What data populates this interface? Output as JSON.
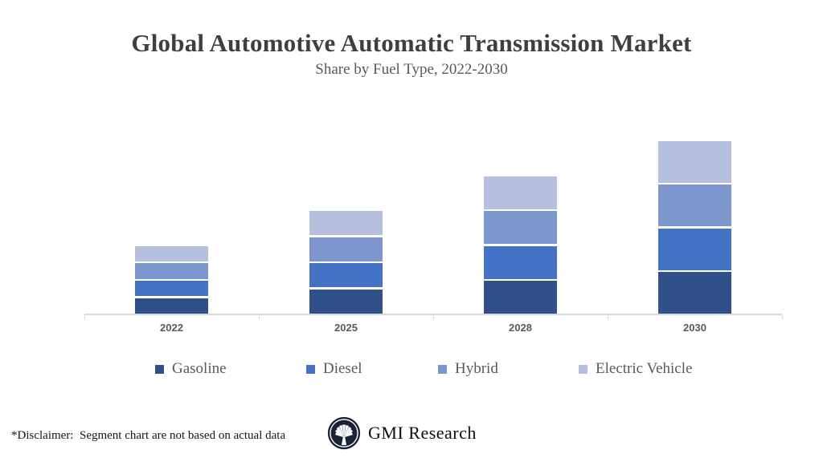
{
  "header": {
    "title": "Global Automotive Automatic Transmission Market",
    "subtitle": "Share by Fuel Type, 2022-2030"
  },
  "chart_data": {
    "type": "bar",
    "stacked": true,
    "title": "Global Automotive Automatic Transmission Market",
    "subtitle": "Share by Fuel Type, 2022-2030",
    "categories": [
      "2022",
      "2025",
      "2028",
      "2030"
    ],
    "series": [
      {
        "name": "Gasoline",
        "color": "#2f5089",
        "values": [
          5,
          7.5,
          10,
          12.5
        ]
      },
      {
        "name": "Diesel",
        "color": "#4472c4",
        "values": [
          5,
          7.5,
          10,
          12.5
        ]
      },
      {
        "name": "Hybrid",
        "color": "#7e96ce",
        "values": [
          5,
          7.5,
          10,
          12.5
        ]
      },
      {
        "name": "Electric Vehicle",
        "color": "#b5c0de",
        "values": [
          5,
          7.5,
          10,
          12.5
        ]
      }
    ],
    "xlabel": "",
    "ylabel": "",
    "ylim": [
      0,
      55
    ],
    "grid": false,
    "y_axis_visible": false,
    "legend_position": "bottom",
    "axis_color": "#d9d9d9",
    "tick_label_color": "#595959",
    "segment_gap_color": "#ffffff"
  },
  "legend": {
    "items": [
      {
        "label": "Gasoline",
        "color": "#2f5089"
      },
      {
        "label": "Diesel",
        "color": "#4472c4"
      },
      {
        "label": "Hybrid",
        "color": "#7e96ce"
      },
      {
        "label": "Electric Vehicle",
        "color": "#b5c0de"
      }
    ]
  },
  "footer": {
    "disclaimer": "*Disclaimer:  Segment chart are not based on actual data",
    "brand_name": "GMI Research",
    "brand_icon": "palm-emblem-icon"
  }
}
